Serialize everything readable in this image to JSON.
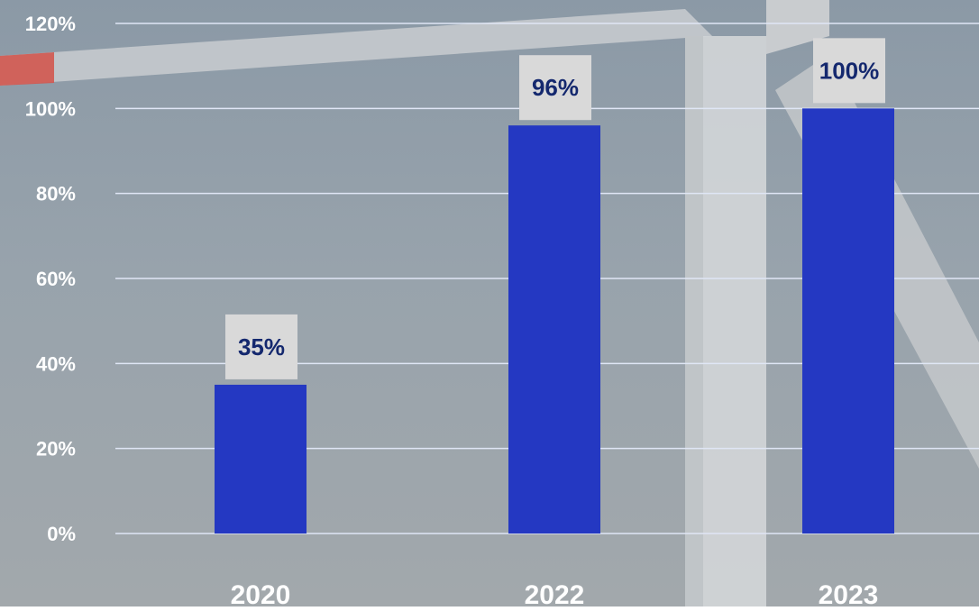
{
  "chart_data": {
    "type": "bar",
    "categories": [
      "2020",
      "2022",
      "2023"
    ],
    "values": [
      35,
      96,
      100
    ],
    "data_labels": [
      "35%",
      "96%",
      "100%"
    ],
    "ylim": [
      0,
      120
    ],
    "yticks": [
      0,
      20,
      40,
      60,
      80,
      100,
      120
    ],
    "ytick_labels": [
      "0%",
      "20%",
      "40%",
      "60%",
      "80%",
      "100%",
      "120%"
    ],
    "grid": true,
    "legend": "none",
    "colors": {
      "bar": "#2438c2",
      "gridline": "#dfe6f5",
      "label_box": "#d9d9d9",
      "label_text": "#14286e",
      "axis_text": "#ffffff"
    }
  },
  "background": {
    "description_icon": "wind-turbine-photo"
  }
}
